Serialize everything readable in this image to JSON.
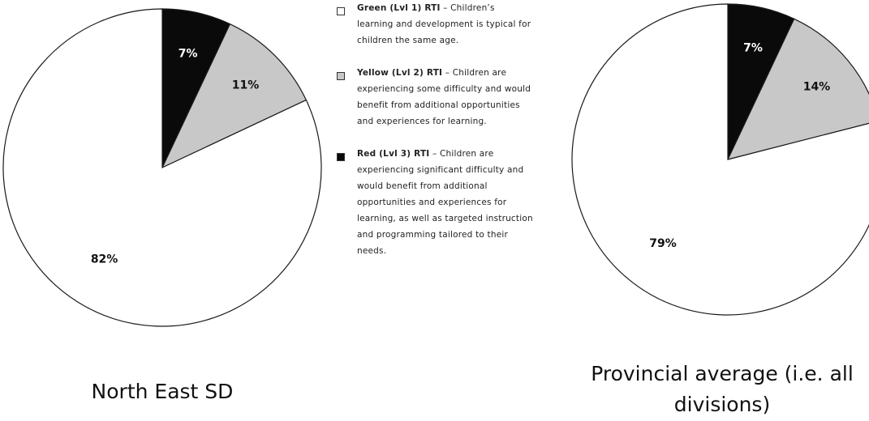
{
  "chart_data": [
    {
      "type": "pie",
      "title": "North East SD",
      "slices": [
        {
          "name": "Green (Lvl 1) RTI",
          "value": 82,
          "label": "82%",
          "color": "#ffffff"
        },
        {
          "name": "Yellow (Lvl 2) RTI",
          "value": 11,
          "label": "11%",
          "color": "#c8c8c8"
        },
        {
          "name": "Red (Lvl 3) RTI",
          "value": 7,
          "label": "7%",
          "color": "#0a0a0a"
        }
      ]
    },
    {
      "type": "pie",
      "title": "Provincial average (i.e. all divisions)",
      "slices": [
        {
          "name": "Green (Lvl 1) RTI",
          "value": 79,
          "label": "79%",
          "color": "#ffffff"
        },
        {
          "name": "Yellow (Lvl 2) RTI",
          "value": 14,
          "label": "14%",
          "color": "#c8c8c8"
        },
        {
          "name": "Red (Lvl 3) RTI",
          "value": 7,
          "label": "7%",
          "color": "#0a0a0a"
        }
      ]
    }
  ],
  "legend": [
    {
      "name": "Green (Lvl 1) RTI",
      "separator": " – ",
      "text": "Children’s learning and development is typical for children the same age.",
      "color": "#ffffff"
    },
    {
      "name": "Yellow (Lvl 2) RTI",
      "separator": " – ",
      "text": "Children are experiencing some difficulty and would benefit from additional opportunities and experiences for learning.",
      "color": "#c8c8c8"
    },
    {
      "name": "Red (Lvl 3) RTI",
      "separator": " – ",
      "text": "Children are experiencing significant difficulty and would benefit from additional opportunities and experiences for learning, as well as targeted instruction and programming tailored to their needs.",
      "color": "#0a0a0a"
    }
  ]
}
